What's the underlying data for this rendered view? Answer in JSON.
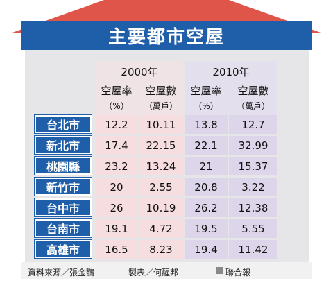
{
  "title": "主要都市空屋",
  "groups": [
    "2000年",
    "2010年"
  ],
  "columns": [
    {
      "name": "空屋率",
      "unit": "（%）"
    },
    {
      "name": "空屋數",
      "unit": "（萬戶）"
    },
    {
      "name": "空屋率",
      "unit": "（%）"
    },
    {
      "name": "空屋數",
      "unit": "（萬戶）"
    }
  ],
  "rows": [
    {
      "city": "台北市",
      "cells": [
        "12.2",
        "10.11",
        "13.8",
        "12.7"
      ]
    },
    {
      "city": "新北市",
      "cells": [
        "17.4",
        "22.15",
        "22.1",
        "32.99"
      ]
    },
    {
      "city": "桃園縣",
      "cells": [
        "23.2",
        "13.24",
        "21",
        "15.37"
      ]
    },
    {
      "city": "新竹市",
      "cells": [
        "20",
        "2.55",
        "20.8",
        "3.22"
      ]
    },
    {
      "city": "台中市",
      "cells": [
        "26",
        "10.19",
        "26.2",
        "12.38"
      ]
    },
    {
      "city": "台南市",
      "cells": [
        "19.1",
        "4.72",
        "19.5",
        "5.55"
      ]
    },
    {
      "city": "高雄市",
      "cells": [
        "16.5",
        "8.23",
        "19.4",
        "11.42"
      ]
    }
  ],
  "footer": {
    "source": "資料來源／張金鶚",
    "maker": "製表／何醒邦",
    "publisher": "聯合報"
  }
}
